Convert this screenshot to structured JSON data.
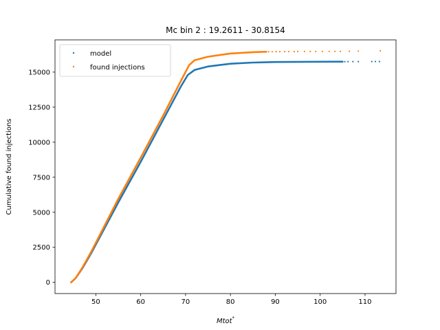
{
  "chart_data": {
    "type": "scatter",
    "title": "Mc bin 2 : 19.2611 - 30.8154",
    "xlabel_base": "Mtot",
    "xlabel_sup": "*",
    "ylabel": "Cumulative found injections",
    "xlim": [
      40.9,
      116.9
    ],
    "ylim": [
      -800,
      17300
    ],
    "xticks": [
      50,
      60,
      70,
      80,
      90,
      100,
      110
    ],
    "yticks": [
      0,
      2500,
      5000,
      7500,
      10000,
      12500,
      15000
    ],
    "legend_position": "upper-left",
    "grid": false,
    "series": [
      {
        "name": "model",
        "color": "#1f77b4",
        "curve": [
          [
            44.5,
            0
          ],
          [
            45.5,
            300
          ],
          [
            47,
            1000
          ],
          [
            49,
            2100
          ],
          [
            55,
            5700
          ],
          [
            60,
            8600
          ],
          [
            65,
            11600
          ],
          [
            69,
            14000
          ],
          [
            70.5,
            14800
          ],
          [
            72,
            15150
          ],
          [
            75,
            15400
          ],
          [
            80,
            15600
          ],
          [
            85,
            15680
          ],
          [
            90,
            15720
          ],
          [
            100,
            15740
          ],
          [
            105,
            15745
          ]
        ],
        "sparse": [
          [
            105.5,
            15746
          ],
          [
            106.2,
            15748
          ],
          [
            107.3,
            15750
          ],
          [
            108.5,
            15752
          ],
          [
            111.5,
            15754
          ],
          [
            112.3,
            15755
          ],
          [
            113.2,
            15757
          ]
        ]
      },
      {
        "name": "found injections",
        "color": "#ff7f0e",
        "curve": [
          [
            44.5,
            0
          ],
          [
            45.5,
            300
          ],
          [
            47,
            1050
          ],
          [
            49,
            2200
          ],
          [
            55,
            5950
          ],
          [
            60,
            8900
          ],
          [
            65,
            11900
          ],
          [
            69,
            14400
          ],
          [
            70.8,
            15500
          ],
          [
            72,
            15850
          ],
          [
            75,
            16100
          ],
          [
            80,
            16330
          ],
          [
            85,
            16420
          ],
          [
            88,
            16450
          ]
        ],
        "sparse": [
          [
            88.5,
            16455
          ],
          [
            89.3,
            16458
          ],
          [
            90.2,
            16460
          ],
          [
            91,
            16462
          ],
          [
            92.1,
            16463
          ],
          [
            93,
            16465
          ],
          [
            94.2,
            16467
          ],
          [
            95,
            16468
          ],
          [
            96.5,
            16470
          ],
          [
            97.8,
            16472
          ],
          [
            99,
            16474
          ],
          [
            100.5,
            16476
          ],
          [
            102,
            16478
          ],
          [
            103.3,
            16480
          ],
          [
            104.5,
            16482
          ],
          [
            106.5,
            16490
          ],
          [
            108.5,
            16500
          ],
          [
            113.4,
            16520
          ]
        ]
      }
    ]
  }
}
